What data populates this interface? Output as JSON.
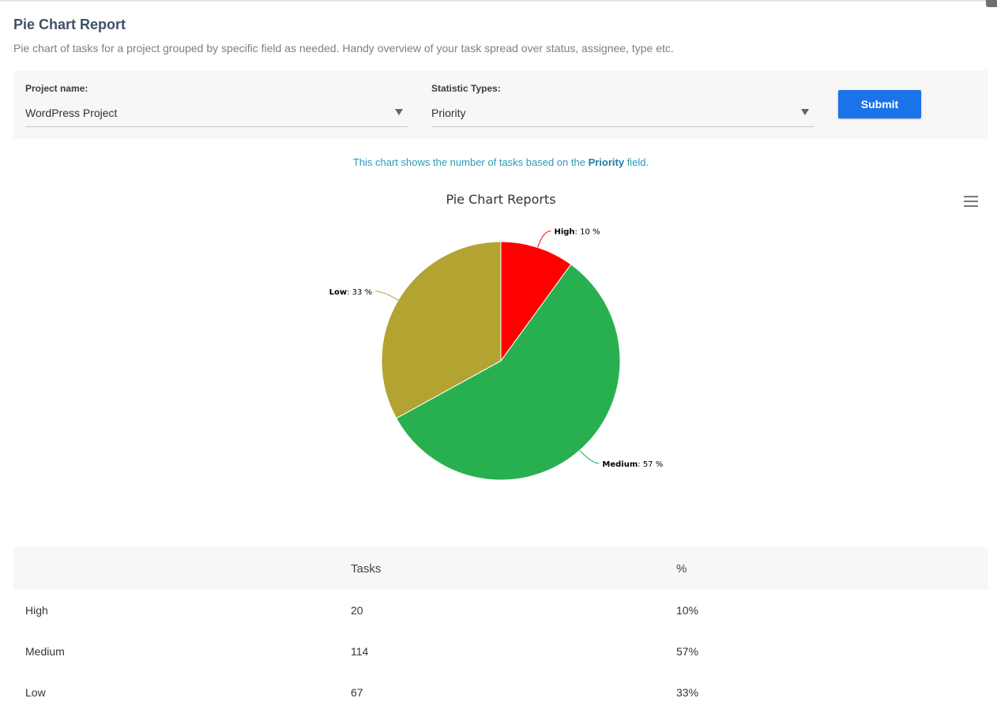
{
  "header": {
    "title": "Pie Chart Report",
    "description": "Pie chart of tasks for a project grouped by specific field as needed. Handy overview of your task spread over status, assignee, type etc."
  },
  "filters": {
    "project_label": "Project name:",
    "project_value": "WordPress Project",
    "stat_label": "Statistic Types:",
    "stat_value": "Priority",
    "submit_label": "Submit"
  },
  "note": {
    "prefix": "This chart shows the number of tasks based on the ",
    "field": "Priority",
    "suffix": " field."
  },
  "icons": {
    "menu": "hamburger-menu-icon",
    "dropdown": "triangle-down-icon"
  },
  "chart_data": {
    "type": "pie",
    "title": "Pie Chart Reports",
    "slices": [
      {
        "label": "High",
        "value": 10,
        "display": ": 10 %",
        "color": "#ff0000"
      },
      {
        "label": "Medium",
        "value": 57,
        "display": ": 57 %",
        "color": "#28b050"
      },
      {
        "label": "Low",
        "value": 33,
        "display": ": 33 %",
        "color": "#b3a330"
      }
    ],
    "start_angle": 0,
    "direction": "clockwise"
  },
  "table": {
    "headers": [
      "",
      "Tasks",
      "%"
    ],
    "rows": [
      [
        "High",
        "20",
        "10%"
      ],
      [
        "Medium",
        "114",
        "57%"
      ],
      [
        "Low",
        "67",
        "33%"
      ]
    ]
  }
}
